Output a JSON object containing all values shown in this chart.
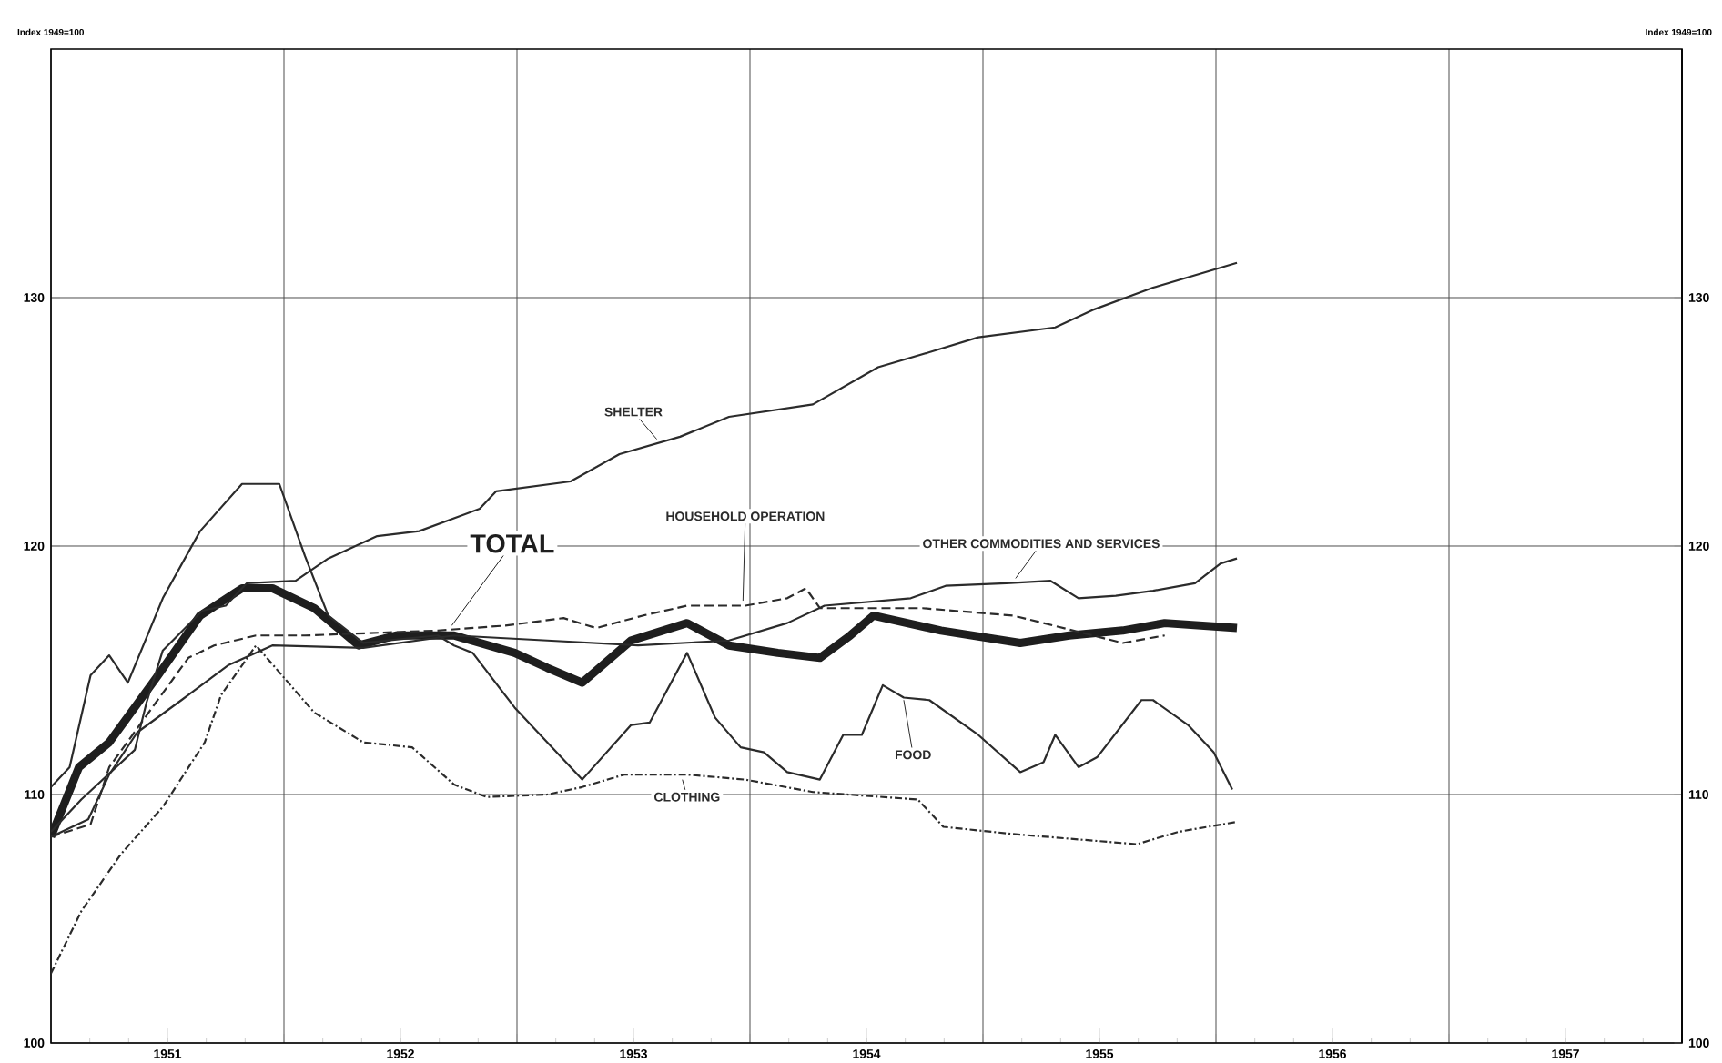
{
  "chart_data": {
    "type": "line",
    "ylabel": "Index 1949=100",
    "y2label": "Index 1949=100",
    "xlim": [
      1951,
      1958
    ],
    "ylim": [
      100,
      140
    ],
    "y2lim": [
      100,
      140
    ],
    "xticks": [
      {
        "value": 1951,
        "label": null
      },
      {
        "value": 1951.5,
        "label": "1951"
      },
      {
        "value": 1952,
        "label": null
      },
      {
        "value": 1952.5,
        "label": "1952"
      },
      {
        "value": 1953,
        "label": null
      },
      {
        "value": 1953.5,
        "label": "1953"
      },
      {
        "value": 1954,
        "label": null
      },
      {
        "value": 1954.5,
        "label": "1954"
      },
      {
        "value": 1955,
        "label": null
      },
      {
        "value": 1955.5,
        "label": "1955"
      },
      {
        "value": 1956,
        "label": null
      },
      {
        "value": 1956.5,
        "label": "1956"
      },
      {
        "value": 1957,
        "label": null
      },
      {
        "value": 1957.5,
        "label": "1957"
      },
      {
        "value": 1958,
        "label": null
      }
    ],
    "yticks": [
      100,
      110,
      120,
      130
    ],
    "y2ticks": [
      100,
      110,
      120,
      130
    ],
    "grid": true,
    "series": [
      {
        "name": "TOTAL",
        "color": "#1e1e1e",
        "line_style": "solid",
        "x": [
          1951.0,
          1951.12,
          1951.25,
          1951.46,
          1951.64,
          1951.82,
          1951.95,
          1952.13,
          1952.32,
          1952.48,
          1952.73,
          1952.99,
          1953.13,
          1953.28,
          1953.49,
          1953.73,
          1953.91,
          1954.12,
          1954.3,
          1954.43,
          1954.53,
          1954.82,
          1955.16,
          1955.37,
          1955.6,
          1955.78,
          1956.09
        ],
        "values": [
          108.3,
          111.1,
          112.1,
          114.8,
          117.2,
          118.3,
          118.3,
          117.5,
          116.0,
          116.4,
          116.4,
          115.7,
          115.1,
          114.5,
          116.2,
          116.9,
          116.0,
          115.7,
          115.5,
          116.4,
          117.2,
          116.6,
          116.1,
          116.4,
          116.6,
          116.9,
          116.7
        ]
      },
      {
        "name": "SHELTER",
        "color": "#2b2b2b",
        "line_style": "solid",
        "x": [
          1951.0,
          1951.13,
          1951.36,
          1951.41,
          1951.48,
          1951.65,
          1951.75,
          1951.84,
          1952.05,
          1952.19,
          1952.4,
          1952.58,
          1952.84,
          1952.91,
          1953.23,
          1953.44,
          1953.7,
          1953.91,
          1954.27,
          1954.55,
          1954.77,
          1954.98,
          1955.31,
          1955.47,
          1955.73,
          1956.09
        ],
        "values": [
          108.5,
          109.8,
          111.8,
          113.7,
          115.8,
          117.4,
          117.6,
          118.5,
          118.6,
          119.5,
          120.4,
          120.6,
          121.5,
          122.2,
          122.6,
          123.7,
          124.4,
          125.2,
          125.7,
          127.2,
          127.8,
          128.4,
          128.8,
          129.5,
          130.4,
          131.4
        ]
      },
      {
        "name": "HOUSEHOLD OPERATION",
        "color": "#2b2b2b",
        "line_style": "dashed",
        "x": [
          1951.0,
          1951.17,
          1951.25,
          1951.45,
          1951.59,
          1951.7,
          1951.88,
          1952.09,
          1952.66,
          1952.95,
          1953.2,
          1953.34,
          1953.54,
          1953.73,
          1953.98,
          1954.16,
          1954.24,
          1954.3,
          1954.74,
          1955.13,
          1955.26,
          1955.6,
          1955.78
        ],
        "values": [
          108.3,
          108.8,
          111.1,
          113.7,
          115.5,
          116.0,
          116.4,
          116.4,
          116.6,
          116.8,
          117.1,
          116.7,
          117.2,
          117.6,
          117.6,
          117.9,
          118.3,
          117.5,
          117.5,
          117.2,
          116.9,
          116.1,
          116.4
        ]
      },
      {
        "name": "OTHER COMMODITIES AND SERVICES",
        "color": "#2b2b2b",
        "line_style": "solid",
        "x": [
          1951.0,
          1951.16,
          1951.25,
          1951.37,
          1951.56,
          1951.76,
          1951.95,
          1952.34,
          1952.73,
          1953.13,
          1953.52,
          1953.91,
          1954.16,
          1954.32,
          1954.69,
          1954.84,
          1955.1,
          1955.29,
          1955.41,
          1955.57,
          1955.73,
          1955.91,
          1956.02,
          1956.09
        ],
        "values": [
          108.3,
          109.0,
          110.8,
          112.5,
          113.8,
          115.2,
          116.0,
          115.9,
          116.4,
          116.2,
          116.0,
          116.2,
          116.9,
          117.6,
          117.9,
          118.4,
          118.5,
          118.6,
          117.9,
          118.0,
          118.2,
          118.5,
          119.3,
          119.5
        ]
      },
      {
        "name": "FOOD",
        "color": "#2b2b2b",
        "line_style": "solid",
        "x": [
          1951.0,
          1951.08,
          1951.17,
          1951.25,
          1951.33,
          1951.48,
          1951.64,
          1951.82,
          1951.98,
          1952.09,
          1952.19,
          1952.34,
          1952.66,
          1952.73,
          1952.81,
          1952.99,
          1953.28,
          1953.49,
          1953.57,
          1953.73,
          1953.85,
          1953.96,
          1954.06,
          1954.16,
          1954.3,
          1954.4,
          1954.48,
          1954.57,
          1954.66,
          1954.77,
          1954.98,
          1955.16,
          1955.26,
          1955.31,
          1955.41,
          1955.49,
          1955.68,
          1955.73,
          1955.88,
          1955.99,
          1956.07
        ],
        "values": [
          110.3,
          111.1,
          114.8,
          115.6,
          114.5,
          117.9,
          120.6,
          122.5,
          122.5,
          119.6,
          117.2,
          116.1,
          116.4,
          116.0,
          115.7,
          113.5,
          110.6,
          112.8,
          112.9,
          115.7,
          113.1,
          111.9,
          111.7,
          110.9,
          110.6,
          112.4,
          112.4,
          114.4,
          113.9,
          113.8,
          112.4,
          110.9,
          111.3,
          112.4,
          111.1,
          111.5,
          113.8,
          113.8,
          112.8,
          111.7,
          110.2
        ]
      },
      {
        "name": "CLOTHING",
        "color": "#2b2b2b",
        "line_style": "dashdot",
        "x": [
          1951.0,
          1951.13,
          1951.3,
          1951.48,
          1951.66,
          1951.73,
          1951.88,
          1952.13,
          1952.34,
          1952.55,
          1952.73,
          1952.87,
          1953.13,
          1953.28,
          1953.46,
          1953.73,
          1953.98,
          1954.27,
          1954.72,
          1954.83,
          1955.14,
          1955.66,
          1955.84,
          1956.09
        ],
        "values": [
          102.8,
          105.3,
          107.6,
          109.5,
          112.1,
          114.0,
          116.0,
          113.3,
          112.1,
          111.9,
          110.4,
          109.9,
          110.0,
          110.3,
          110.8,
          110.8,
          110.6,
          110.1,
          109.8,
          108.7,
          108.4,
          108.0,
          108.5,
          108.9
        ]
      }
    ]
  }
}
